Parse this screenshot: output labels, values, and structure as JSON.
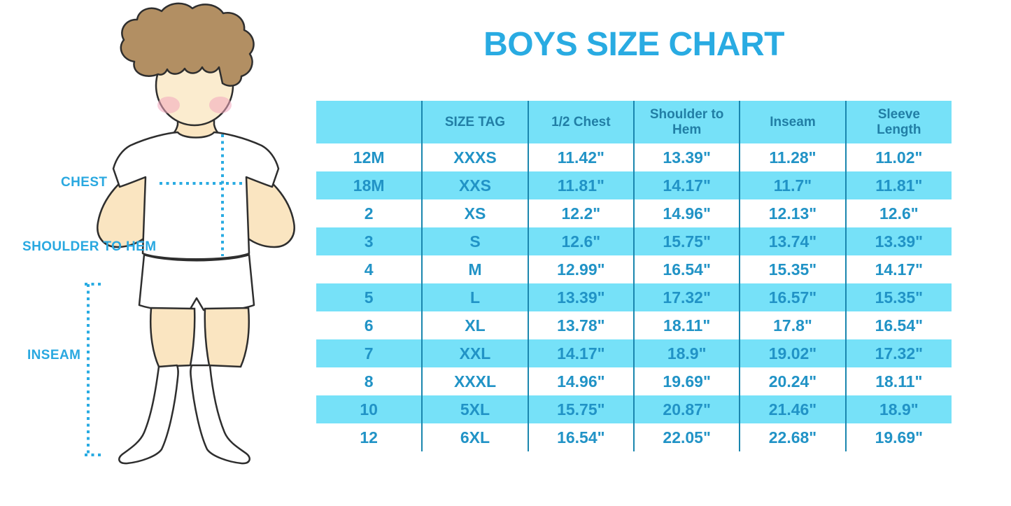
{
  "title": "BOYS SIZE CHART",
  "colors": {
    "accent": "#29abe2",
    "stripe_bg": "#76e1f8",
    "divider": "#1a86ae",
    "header_text": "#217ea5",
    "cell_text": "#2193c6",
    "label_text": "#29a8e0"
  },
  "figure_labels": {
    "chest": "CHEST",
    "shoulder_to_hem": "SHOULDER TO HEM",
    "inseam": "INSEAM"
  },
  "chart_data": {
    "type": "table",
    "title": "BOYS SIZE CHART",
    "columns": [
      "",
      "SIZE TAG",
      "1/2 Chest",
      "Shoulder to Hem",
      "Inseam",
      "Sleeve Length"
    ],
    "rows": [
      [
        "12M",
        "XXXS",
        "11.42\"",
        "13.39\"",
        "11.28\"",
        "11.02\""
      ],
      [
        "18M",
        "XXS",
        "11.81\"",
        "14.17\"",
        "11.7\"",
        "11.81\""
      ],
      [
        "2",
        "XS",
        "12.2\"",
        "14.96\"",
        "12.13\"",
        "12.6\""
      ],
      [
        "3",
        "S",
        "12.6\"",
        "15.75\"",
        "13.74\"",
        "13.39\""
      ],
      [
        "4",
        "M",
        "12.99\"",
        "16.54\"",
        "15.35\"",
        "14.17\""
      ],
      [
        "5",
        "L",
        "13.39\"",
        "17.32\"",
        "16.57\"",
        "15.35\""
      ],
      [
        "6",
        "XL",
        "13.78\"",
        "18.11\"",
        "17.8\"",
        "16.54\""
      ],
      [
        "7",
        "XXL",
        "14.17\"",
        "18.9\"",
        "19.02\"",
        "17.32\""
      ],
      [
        "8",
        "XXXL",
        "14.96\"",
        "19.69\"",
        "20.24\"",
        "18.11\""
      ],
      [
        "10",
        "5XL",
        "15.75\"",
        "20.87\"",
        "21.46\"",
        "18.9\""
      ],
      [
        "12",
        "6XL",
        "16.54\"",
        "22.05\"",
        "22.68\"",
        "19.69\""
      ]
    ]
  }
}
